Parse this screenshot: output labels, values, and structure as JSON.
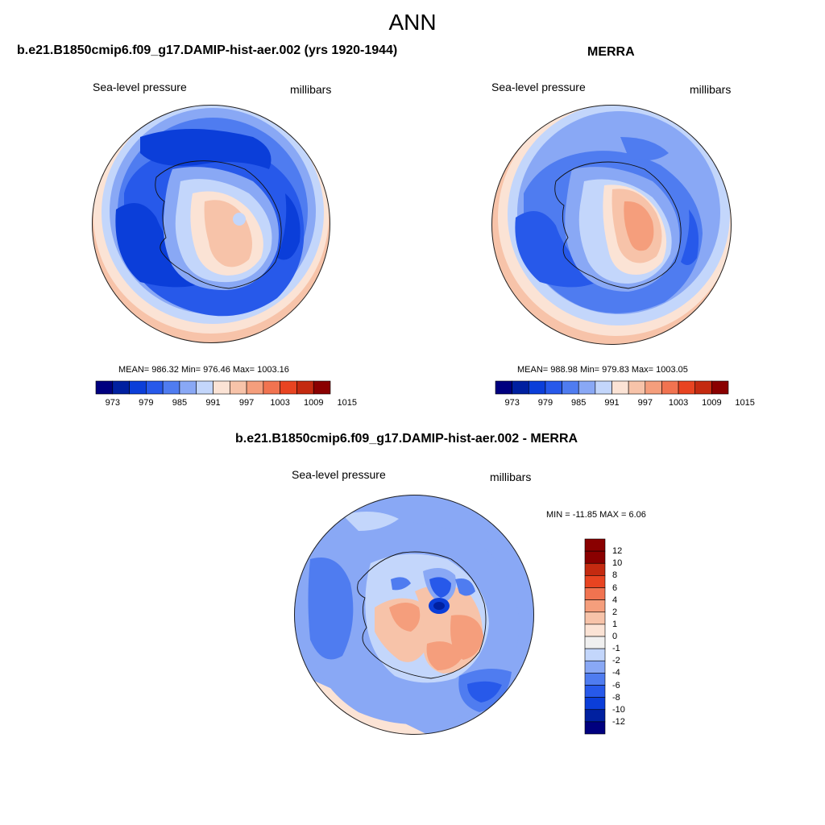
{
  "page_title": "ANN",
  "variable_label": "Sea-level pressure",
  "units_label": "millibars",
  "colors": {
    "abs_scale": [
      "#00007f",
      "#0020a0",
      "#0b3ed9",
      "#2759ea",
      "#4f7cf0",
      "#89a8f5",
      "#c3d6fb",
      "#fbe3d5",
      "#f7c3a9",
      "#f59e7c",
      "#f17350",
      "#e84421",
      "#c42a10",
      "#8a0000"
    ],
    "diff_scale": [
      "#00007f",
      "#0020a0",
      "#0b3ed9",
      "#2759ea",
      "#4f7cf0",
      "#89a8f5",
      "#c3d6fb",
      "#f0f0f0",
      "#fbe3d5",
      "#f7c3a9",
      "#f59e7c",
      "#f17350",
      "#e84421",
      "#c42a10",
      "#8a0000"
    ]
  },
  "panels": {
    "model": {
      "title": "b.e21.B1850cmip6.f09_g17.DAMIP-hist-aer.002 (yrs 1920-1944)",
      "stats": "MEAN= 986.32  Min= 976.46  Max= 1003.16"
    },
    "obs": {
      "title": "MERRA",
      "stats": "MEAN= 988.98  Min= 979.83  Max= 1003.05"
    },
    "diff": {
      "title": "b.e21.B1850cmip6.f09_g17.DAMIP-hist-aer.002 - MERRA",
      "stats": "MIN = -11.85 MAX =   6.06"
    }
  },
  "abs_colorbar_labels": [
    "973",
    "979",
    "985",
    "991",
    "997",
    "1003",
    "1009",
    "1015"
  ],
  "diff_colorbar_labels": [
    "12",
    "10",
    "8",
    "6",
    "4",
    "2",
    "1",
    "0",
    "-1",
    "-2",
    "-4",
    "-6",
    "-8",
    "-10",
    "-12"
  ]
}
